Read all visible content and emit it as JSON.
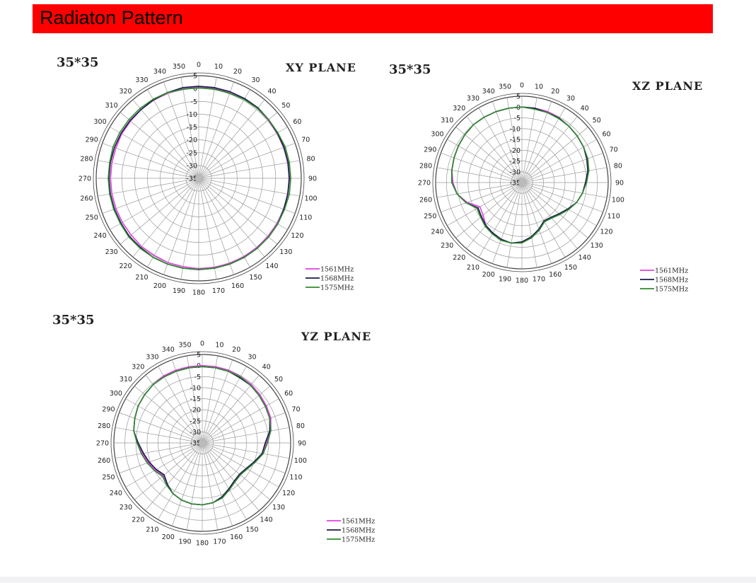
{
  "header": {
    "title": "Radiaton Pattern",
    "bar_color": "#ff0000"
  },
  "chart_data": [
    {
      "type": "polar-line",
      "size_label": "35*35",
      "title": "XY PLANE",
      "angle_ticks": [
        "0",
        "10",
        "20",
        "30",
        "40",
        "50",
        "60",
        "70",
        "80",
        "90",
        "100",
        "110",
        "120",
        "130",
        "140",
        "150",
        "160",
        "170",
        "180",
        "190",
        "200",
        "210",
        "220",
        "230",
        "240",
        "250",
        "260",
        "270",
        "280",
        "290",
        "300",
        "310",
        "320",
        "330",
        "340",
        "350"
      ],
      "radial_ticks": [
        "5",
        "0",
        "-5",
        "-10",
        "-15",
        "-20",
        "-25",
        "-30",
        "-35"
      ],
      "rlim": [
        -35,
        5
      ],
      "grid": true,
      "legend": "bottom-right",
      "angles": [
        0,
        10,
        20,
        30,
        40,
        50,
        60,
        70,
        80,
        90,
        100,
        110,
        120,
        130,
        140,
        150,
        160,
        170,
        180,
        190,
        200,
        210,
        220,
        230,
        240,
        250,
        260,
        270,
        280,
        290,
        300,
        310,
        320,
        330,
        340,
        350
      ],
      "series": [
        {
          "name": "1561MHz",
          "color": "#e040e0",
          "values": [
            0.6,
            0.6,
            0.4,
            0.6,
            0.6,
            0.4,
            0.3,
            0.3,
            0.3,
            0.3,
            0.3,
            0.3,
            0.3,
            0.3,
            0.3,
            0.3,
            0.3,
            0.3,
            0.3,
            0.0,
            0.0,
            -0.3,
            -0.3,
            -0.6,
            -0.6,
            -0.6,
            -0.6,
            -0.6,
            -0.6,
            -0.6,
            -0.3,
            -0.3,
            0.0,
            0.2,
            0.4,
            0.4
          ]
        },
        {
          "name": "1568MHz",
          "color": "#1a1a4a",
          "values": [
            0.9,
            0.9,
            0.9,
            0.9,
            0.9,
            0.6,
            0.4,
            0.4,
            0.4,
            0.4,
            0.3,
            0.3,
            0.6,
            0.6,
            0.6,
            0.6,
            0.6,
            0.6,
            0.6,
            0.6,
            0.6,
            0.6,
            0.3,
            0.3,
            0.0,
            0.0,
            0.0,
            0.0,
            0.0,
            0.0,
            0.0,
            0.0,
            0.0,
            0.3,
            0.6,
            0.9
          ]
        },
        {
          "name": "1575MHz",
          "color": "#2e8b2e",
          "values": [
            0.3,
            0.3,
            0.3,
            0.5,
            0.6,
            0.6,
            0.6,
            0.9,
            0.9,
            0.9,
            0.9,
            0.6,
            0.6,
            0.6,
            0.6,
            0.6,
            0.6,
            0.6,
            0.6,
            0.6,
            0.6,
            0.6,
            0.6,
            0.6,
            0.3,
            0.3,
            0.3,
            0.3,
            0.3,
            0.6,
            0.6,
            0.6,
            0.6,
            0.6,
            0.6,
            0.3
          ]
        }
      ]
    },
    {
      "type": "polar-line",
      "size_label": "35*35",
      "title": "XZ PLANE",
      "angle_ticks": [
        "0",
        "10",
        "20",
        "30",
        "40",
        "50",
        "60",
        "70",
        "80",
        "90",
        "100",
        "110",
        "120",
        "130",
        "140",
        "150",
        "160",
        "170",
        "180",
        "190",
        "200",
        "210",
        "220",
        "230",
        "240",
        "250",
        "260",
        "270",
        "280",
        "290",
        "300",
        "310",
        "320",
        "330",
        "340",
        "350"
      ],
      "radial_ticks": [
        "5",
        "0",
        "-5",
        "-10",
        "-15",
        "-20",
        "-25",
        "-30",
        "-35"
      ],
      "rlim": [
        -35,
        5
      ],
      "grid": true,
      "legend": "bottom-right",
      "angles": [
        0,
        10,
        20,
        30,
        40,
        50,
        60,
        70,
        80,
        90,
        100,
        110,
        120,
        130,
        140,
        150,
        160,
        170,
        180,
        190,
        200,
        210,
        220,
        230,
        240,
        250,
        260,
        270,
        280,
        290,
        300,
        310,
        320,
        330,
        340,
        350
      ],
      "series": [
        {
          "name": "1561MHz",
          "color": "#e040e0",
          "values": [
            0.0,
            0.0,
            0.0,
            -0.5,
            -1.0,
            -1.5,
            -2.0,
            -2.6,
            -3.5,
            -5.5,
            -6.5,
            -8.0,
            -10.0,
            -12.0,
            -13.5,
            -14.5,
            -12.0,
            -9.0,
            -7.5,
            -6.5,
            -7.0,
            -8.0,
            -9.0,
            -11.5,
            -12.5,
            -8.0,
            -4.5,
            -3.0,
            -2.0,
            -1.5,
            -1.0,
            -0.5,
            0.0,
            0.0,
            0.0,
            0.0
          ]
        },
        {
          "name": "1568MHz",
          "color": "#1a1a4a",
          "values": [
            0.0,
            0.0,
            -0.5,
            -0.5,
            -1.0,
            -1.5,
            -2.0,
            -3.0,
            -4.0,
            -5.5,
            -6.5,
            -8.0,
            -10.5,
            -12.5,
            -14.0,
            -14.5,
            -12.0,
            -9.5,
            -7.5,
            -6.5,
            -7.0,
            -8.0,
            -9.0,
            -10.5,
            -11.5,
            -7.5,
            -4.5,
            -2.5,
            -2.0,
            -1.5,
            -1.0,
            -0.5,
            0.0,
            0.0,
            0.0,
            0.0
          ]
        },
        {
          "name": "1575MHz",
          "color": "#2e8b2e",
          "values": [
            0.0,
            -0.5,
            -0.5,
            -0.8,
            -1.0,
            -1.5,
            -2.0,
            -2.5,
            -3.5,
            -5.0,
            -6.5,
            -8.0,
            -10.0,
            -12.0,
            -13.5,
            -14.0,
            -11.5,
            -9.0,
            -7.0,
            -6.5,
            -6.5,
            -7.5,
            -8.5,
            -10.0,
            -11.0,
            -7.5,
            -4.5,
            -2.5,
            -2.0,
            -1.5,
            -1.0,
            -0.5,
            0.0,
            0.0,
            0.0,
            0.0
          ]
        }
      ]
    },
    {
      "type": "polar-line",
      "size_label": "35*35",
      "title": "YZ PLANE",
      "angle_ticks": [
        "0",
        "10",
        "20",
        "30",
        "40",
        "50",
        "60",
        "70",
        "80",
        "90",
        "100",
        "110",
        "120",
        "130",
        "140",
        "150",
        "160",
        "170",
        "180",
        "190",
        "200",
        "210",
        "220",
        "230",
        "240",
        "250",
        "260",
        "270",
        "280",
        "290",
        "300",
        "310",
        "320",
        "330",
        "340",
        "350"
      ],
      "radial_ticks": [
        "5",
        "0",
        "-5",
        "-10",
        "-15",
        "-20",
        "-25",
        "-30",
        "-35"
      ],
      "rlim": [
        -35,
        5
      ],
      "grid": true,
      "legend": "bottom-right",
      "angles": [
        0,
        10,
        20,
        30,
        40,
        50,
        60,
        70,
        80,
        90,
        100,
        110,
        120,
        130,
        140,
        150,
        160,
        170,
        180,
        190,
        200,
        210,
        220,
        230,
        240,
        250,
        260,
        270,
        280,
        290,
        300,
        310,
        320,
        330,
        340,
        350
      ],
      "series": [
        {
          "name": "1561MHz",
          "color": "#e040e0",
          "values": [
            0.0,
            0.0,
            0.0,
            -0.3,
            -0.5,
            -1.0,
            -1.5,
            -2.0,
            -3.5,
            -6.0,
            -7.0,
            -9.5,
            -11.5,
            -12.5,
            -12.0,
            -10.5,
            -8.5,
            -7.5,
            -7.0,
            -7.0,
            -7.5,
            -8.5,
            -10.0,
            -12.0,
            -10.5,
            -9.0,
            -7.5,
            -5.5,
            -3.5,
            -2.5,
            -1.5,
            -1.0,
            -0.5,
            0.0,
            0.0,
            0.0
          ]
        },
        {
          "name": "1568MHz",
          "color": "#1a1a4a",
          "values": [
            -0.5,
            -0.5,
            -0.5,
            -1.0,
            -1.0,
            -1.5,
            -2.0,
            -2.5,
            -4.0,
            -6.5,
            -7.5,
            -10.0,
            -12.0,
            -13.0,
            -12.5,
            -11.0,
            -9.0,
            -7.5,
            -7.0,
            -7.0,
            -7.5,
            -8.5,
            -10.5,
            -12.5,
            -11.0,
            -9.5,
            -8.0,
            -6.0,
            -3.5,
            -2.5,
            -1.5,
            -1.0,
            -0.5,
            -0.5,
            -0.5,
            -0.5
          ]
        },
        {
          "name": "1575MHz",
          "color": "#2e8b2e",
          "values": [
            -0.5,
            -0.5,
            -0.5,
            -0.5,
            -1.0,
            -1.5,
            -2.0,
            -2.5,
            -3.5,
            -5.5,
            -7.0,
            -9.5,
            -11.5,
            -12.5,
            -12.0,
            -10.5,
            -8.5,
            -7.5,
            -7.0,
            -7.0,
            -7.5,
            -8.5,
            -10.0,
            -11.5,
            -10.0,
            -8.5,
            -7.0,
            -5.5,
            -3.5,
            -2.5,
            -1.5,
            -1.0,
            -0.5,
            -0.5,
            -0.5,
            -0.5
          ]
        }
      ]
    }
  ]
}
